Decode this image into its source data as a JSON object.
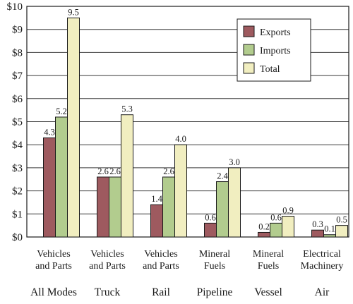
{
  "chart_data": {
    "type": "bar",
    "title": "",
    "xlabel": "",
    "ylabel": "",
    "ylim": [
      0,
      10
    ],
    "yticks": [
      "$0",
      "$1",
      "$2",
      "$3",
      "$4",
      "$5",
      "$6",
      "$7",
      "$8",
      "$9",
      "$10"
    ],
    "grid": true,
    "legend_position": "top-right",
    "groups": [
      {
        "mode": "All Modes",
        "commodity": [
          "Vehicles",
          "and Parts"
        ]
      },
      {
        "mode": "Truck",
        "commodity": [
          "Vehicles",
          "and Parts"
        ]
      },
      {
        "mode": "Rail",
        "commodity": [
          "Vehicles",
          "and Parts"
        ]
      },
      {
        "mode": "Pipeline",
        "commodity": [
          "Mineral",
          "Fuels"
        ]
      },
      {
        "mode": "Vessel",
        "commodity": [
          "Mineral",
          "Fuels"
        ]
      },
      {
        "mode": "Air",
        "commodity": [
          "Electrical",
          "Machinery"
        ]
      }
    ],
    "series": [
      {
        "name": "Exports",
        "color": "#9e5a5f",
        "values": [
          4.3,
          2.6,
          1.4,
          0.6,
          0.2,
          0.3
        ],
        "labels": [
          "4.3",
          "2.6",
          "1.4",
          "0.6",
          "0.2",
          "0.3"
        ]
      },
      {
        "name": "Imports",
        "color": "#b2cc8e",
        "values": [
          5.2,
          2.6,
          2.6,
          2.4,
          0.6,
          0.1
        ],
        "labels": [
          "5.2",
          "2.6",
          "2.6",
          "2.4",
          "0.6",
          "0.1"
        ]
      },
      {
        "name": "Total",
        "color": "#f1eec0",
        "values": [
          9.5,
          5.3,
          4.0,
          3.0,
          0.9,
          0.5
        ],
        "labels": [
          "9.5",
          "5.3",
          "4.0",
          "3.0",
          "0.9",
          "0.5"
        ]
      }
    ]
  }
}
